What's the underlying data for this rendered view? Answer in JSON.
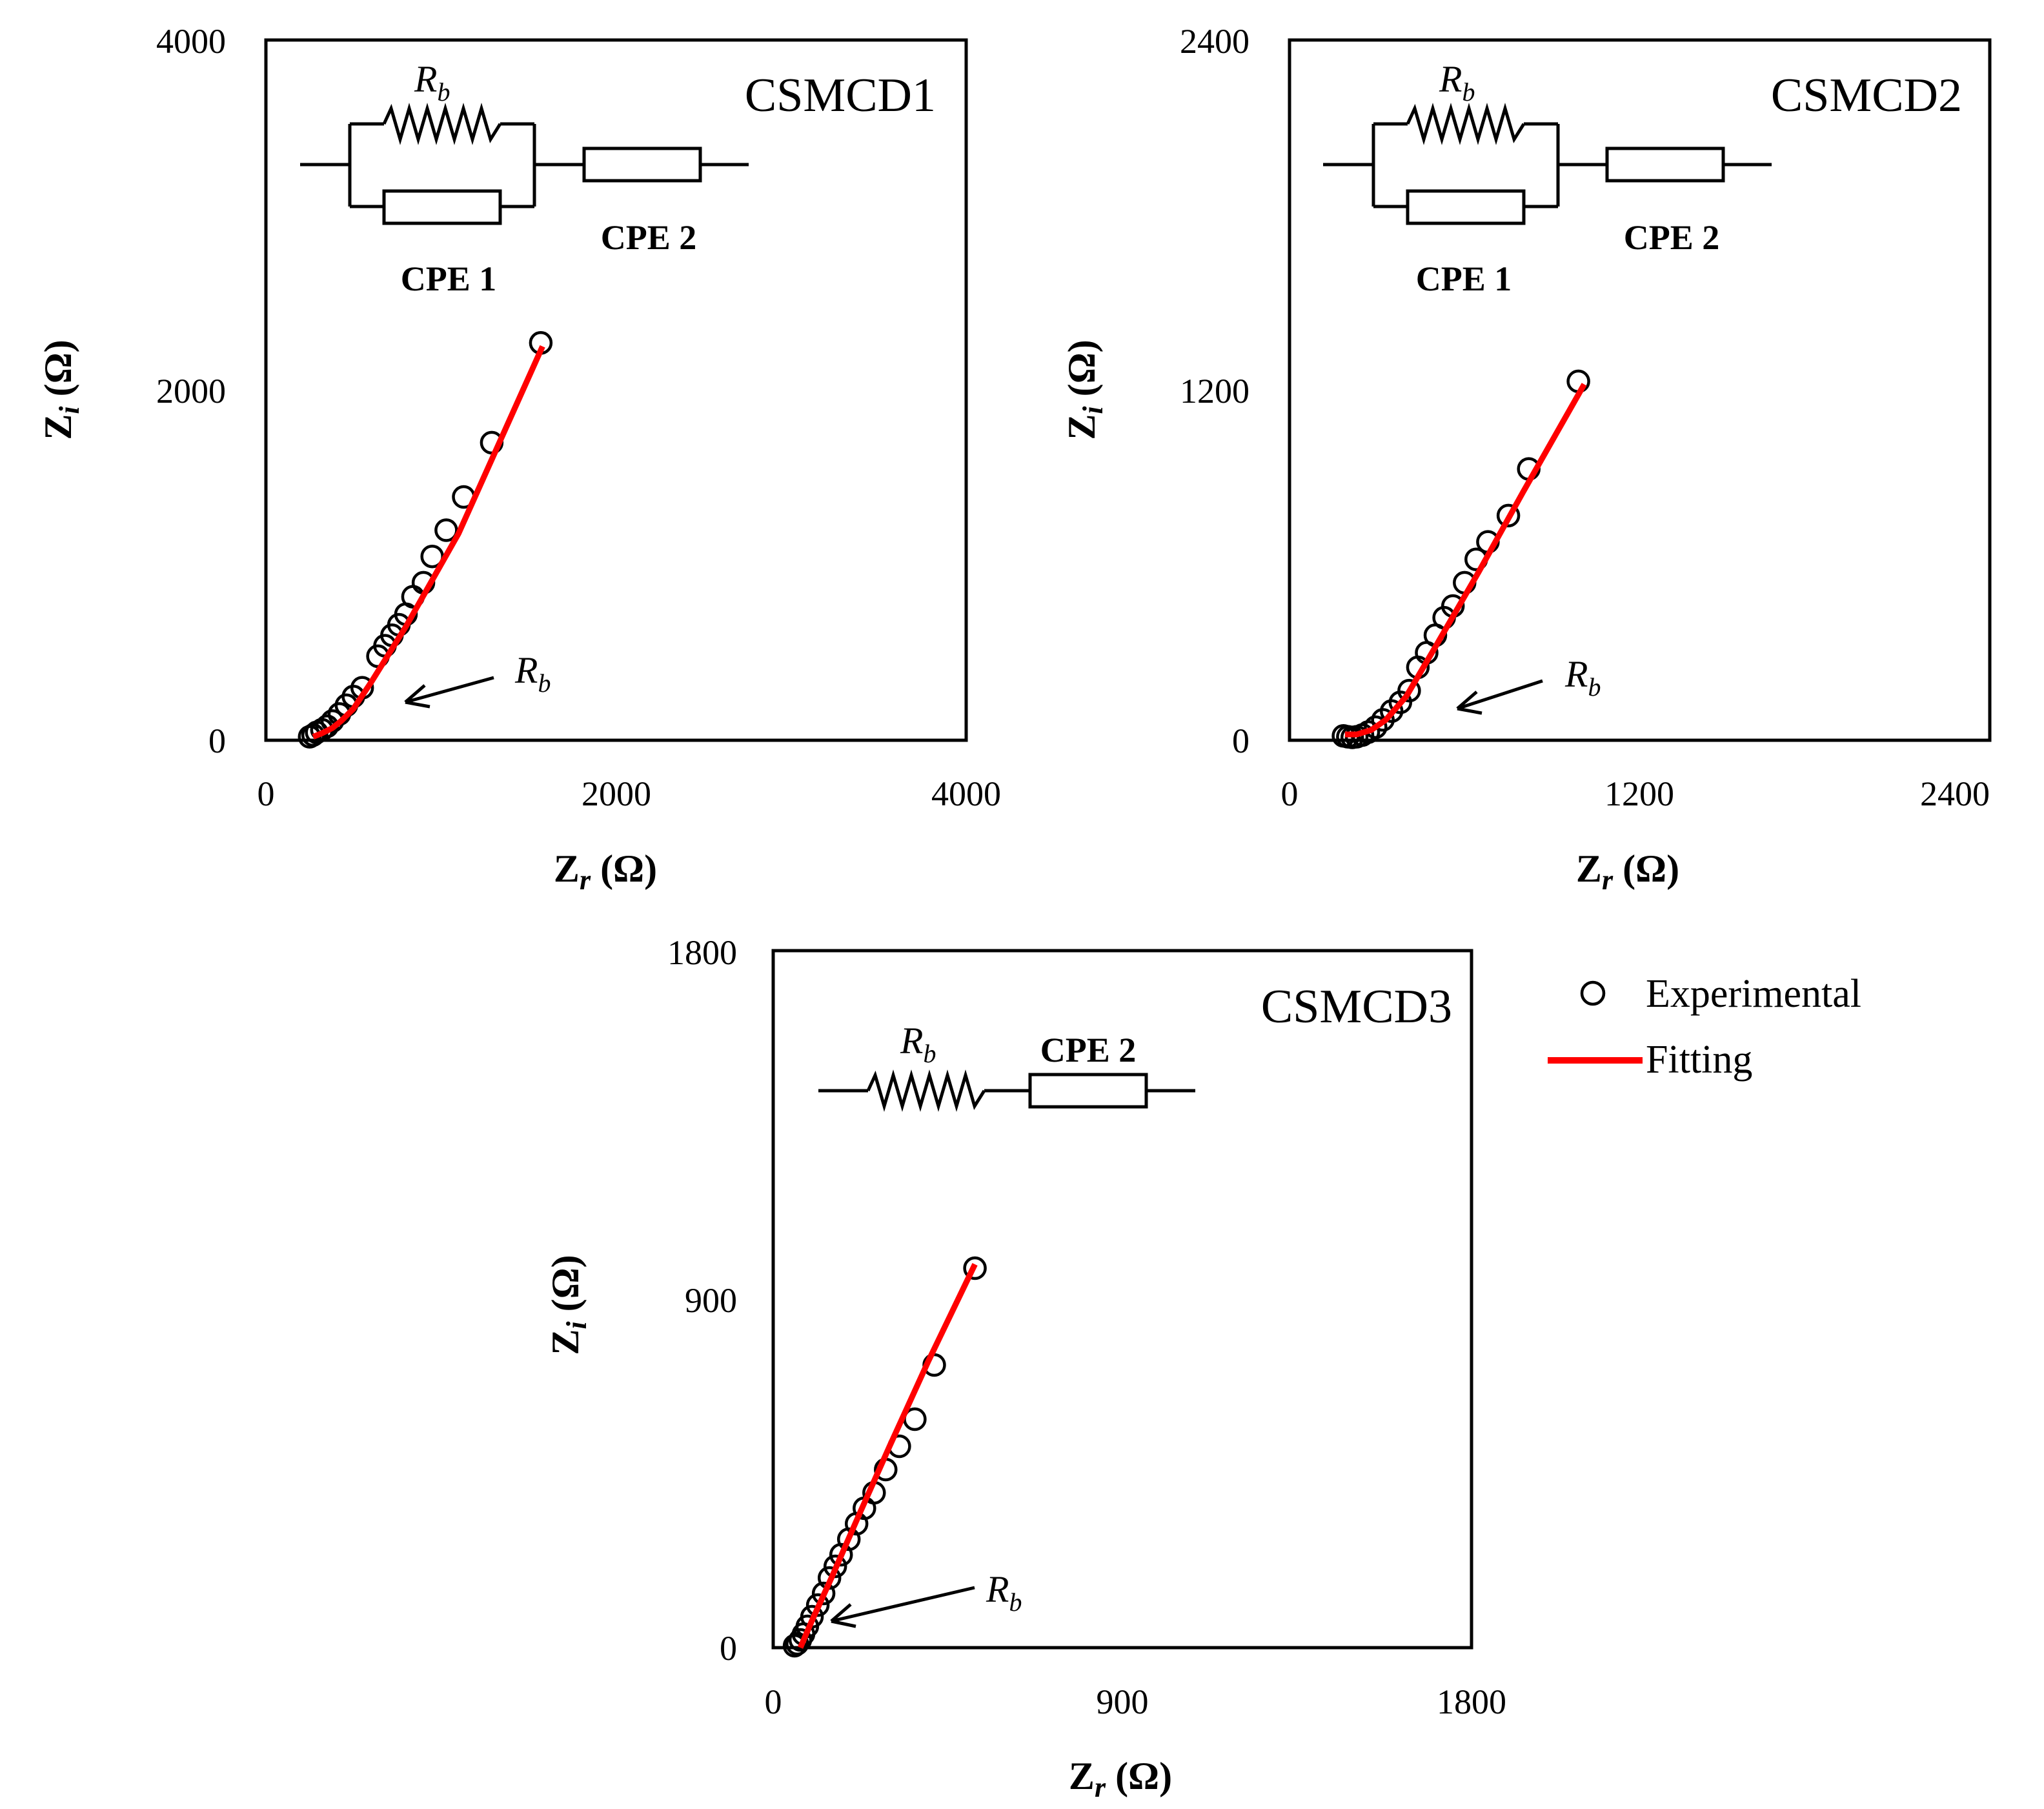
{
  "legend": {
    "experimental": "Experimental",
    "fitting": "Fitting"
  },
  "colors": {
    "fitting": "#ff0000",
    "experimental": "#000000",
    "axis": "#000000",
    "background": "#ffffff"
  },
  "circuit_labels": {
    "rb_main": "R",
    "rb_sub": "b",
    "cpe1": "CPE 1",
    "cpe2": "CPE 2"
  },
  "chart_data": [
    {
      "type": "scatter",
      "title": "CSMCD1",
      "xlabel_main": "Z",
      "xlabel_sub": "r",
      "xlabel_unit": " (Ω)",
      "ylabel_main": "Z",
      "ylabel_sub": "i",
      "ylabel_unit": " (Ω)",
      "xlim": [
        0,
        4000
      ],
      "ylim": [
        0,
        4000
      ],
      "xticks": [
        "0",
        "2000",
        "4000"
      ],
      "yticks": [
        "0",
        "2000",
        "4000"
      ],
      "circuit": "Rb||CPE1 + CPE2",
      "annotation": "Rb",
      "rb_point": [
        820,
        260
      ],
      "series": [
        {
          "name": "Experimental",
          "x": [
            250,
            270,
            290,
            320,
            350,
            380,
            420,
            460,
            500,
            550,
            640,
            680,
            720,
            760,
            800,
            840,
            900,
            950,
            1030,
            1130,
            1290,
            1570
          ],
          "y": [
            20,
            30,
            45,
            60,
            80,
            110,
            150,
            200,
            250,
            300,
            480,
            540,
            600,
            660,
            720,
            820,
            900,
            1050,
            1200,
            1390,
            1700,
            2270
          ]
        },
        {
          "name": "Fitting",
          "x": [
            270,
            320,
            380,
            430,
            500,
            600,
            800,
            1100,
            1580
          ],
          "y": [
            20,
            40,
            70,
            110,
            180,
            330,
            650,
            1180,
            2250
          ]
        }
      ]
    },
    {
      "type": "scatter",
      "title": "CSMCD2",
      "xlabel_main": "Z",
      "xlabel_sub": "r",
      "xlabel_unit": " (Ω)",
      "ylabel_main": "Z",
      "ylabel_sub": "i",
      "ylabel_unit": " (Ω)",
      "xlim": [
        0,
        2400
      ],
      "ylim": [
        0,
        2400
      ],
      "xticks": [
        "0",
        "1200",
        "2400"
      ],
      "yticks": [
        "0",
        "1200",
        "2400"
      ],
      "circuit": "Rb||CPE1 + CPE2",
      "annotation": "Rb",
      "rb_point": [
        560,
        130
      ],
      "series": [
        {
          "name": "Experimental",
          "x": [
            185,
            200,
            215,
            230,
            250,
            270,
            295,
            320,
            350,
            380,
            410,
            440,
            470,
            500,
            530,
            560,
            600,
            640,
            680,
            750,
            820,
            990
          ],
          "y": [
            15,
            12,
            10,
            12,
            18,
            28,
            45,
            70,
            100,
            130,
            170,
            250,
            300,
            360,
            420,
            460,
            540,
            620,
            680,
            770,
            930,
            1230
          ]
        },
        {
          "name": "Fitting",
          "x": [
            190,
            230,
            280,
            330,
            400,
            500,
            650,
            800,
            1010
          ],
          "y": [
            20,
            20,
            35,
            70,
            150,
            320,
            580,
            850,
            1220
          ]
        }
      ]
    },
    {
      "type": "scatter",
      "title": "CSMCD3",
      "xlabel_main": "Z",
      "xlabel_sub": "r",
      "xlabel_unit": " (Ω)",
      "ylabel_main": "Z",
      "ylabel_sub": "i",
      "ylabel_unit": " (Ω)",
      "xlim": [
        0,
        1800
      ],
      "ylim": [
        0,
        1800
      ],
      "xticks": [
        "0",
        "900",
        "1800"
      ],
      "yticks": [
        "0",
        "900",
        "1800"
      ],
      "circuit": "Rb + CPE2",
      "annotation": "Rb",
      "rb_point": [
        150,
        60
      ],
      "series": [
        {
          "name": "Experimental",
          "x": [
            55,
            62,
            70,
            78,
            88,
            100,
            115,
            130,
            145,
            160,
            175,
            195,
            215,
            235,
            260,
            290,
            325,
            365,
            415,
            520
          ],
          "y": [
            5,
            10,
            20,
            35,
            55,
            80,
            110,
            140,
            180,
            210,
            240,
            280,
            320,
            360,
            400,
            460,
            520,
            590,
            730,
            980
          ]
        },
        {
          "name": "Fitting",
          "x": [
            70,
            100,
            150,
            220,
            300,
            400,
            520
          ],
          "y": [
            0,
            70,
            180,
            340,
            520,
            740,
            990
          ]
        }
      ]
    }
  ]
}
